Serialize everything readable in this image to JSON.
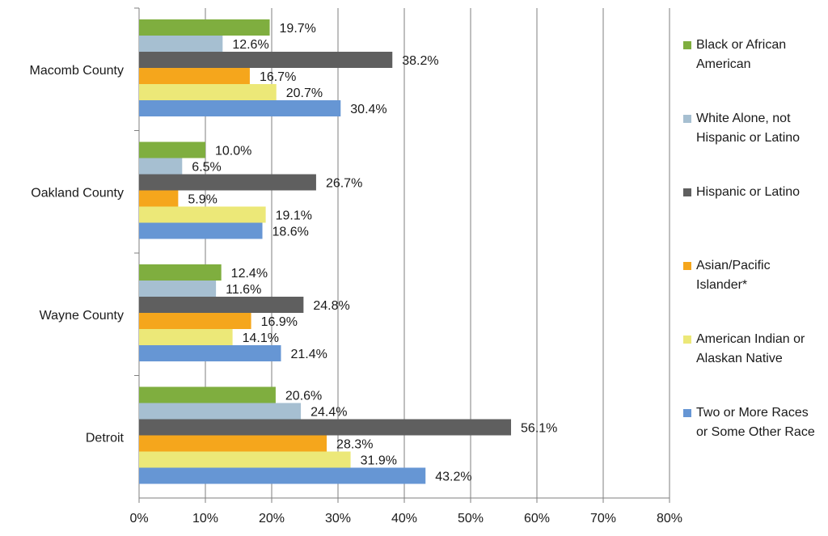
{
  "chart_data": {
    "type": "bar",
    "orientation": "horizontal",
    "categories": [
      "Macomb County",
      "Oakland County",
      "Wayne County",
      "Detroit"
    ],
    "series": [
      {
        "name": "Black or African\nAmerican",
        "color": "#7fae3f",
        "values": [
          19.7,
          10.0,
          12.4,
          20.6
        ],
        "labels": [
          "19.7%",
          "10.0%",
          "12.4%",
          "20.6%"
        ]
      },
      {
        "name": "White Alone, not\nHispanic or Latino",
        "color": "#a6bfd1",
        "values": [
          12.6,
          6.5,
          11.6,
          24.4
        ],
        "labels": [
          "12.6%",
          "6.5%",
          "11.6%",
          "24.4%"
        ]
      },
      {
        "name": "Hispanic or Latino",
        "color": "#5f5f5f",
        "values": [
          38.2,
          26.7,
          24.8,
          56.1
        ],
        "labels": [
          "38.2%",
          "26.7%",
          "24.8%",
          "56.1%"
        ]
      },
      {
        "name": "Asian/Pacific\nIslander*",
        "color": "#f5a61c",
        "values": [
          16.7,
          5.9,
          16.9,
          28.3
        ],
        "labels": [
          "16.7%",
          "5.9%",
          "16.9%",
          "28.3%"
        ]
      },
      {
        "name": "American Indian or\nAlaskan Native",
        "color": "#ece878",
        "values": [
          20.7,
          19.1,
          14.1,
          31.9
        ],
        "labels": [
          "20.7%",
          "19.1%",
          "14.1%",
          "31.9%"
        ]
      },
      {
        "name": "Two or More Races\nor Some Other Race",
        "color": "#6696d4",
        "values": [
          30.4,
          18.6,
          21.4,
          43.2
        ],
        "labels": [
          "30.4%",
          "18.6%",
          "21.4%",
          "43.2%"
        ]
      }
    ],
    "x_ticks": [
      "0%",
      "10%",
      "20%",
      "30%",
      "40%",
      "50%",
      "60%",
      "70%",
      "80%"
    ],
    "xlim": [
      0,
      80
    ],
    "grid": true,
    "legend_position": "right",
    "title": "",
    "xlabel": "",
    "ylabel": ""
  }
}
